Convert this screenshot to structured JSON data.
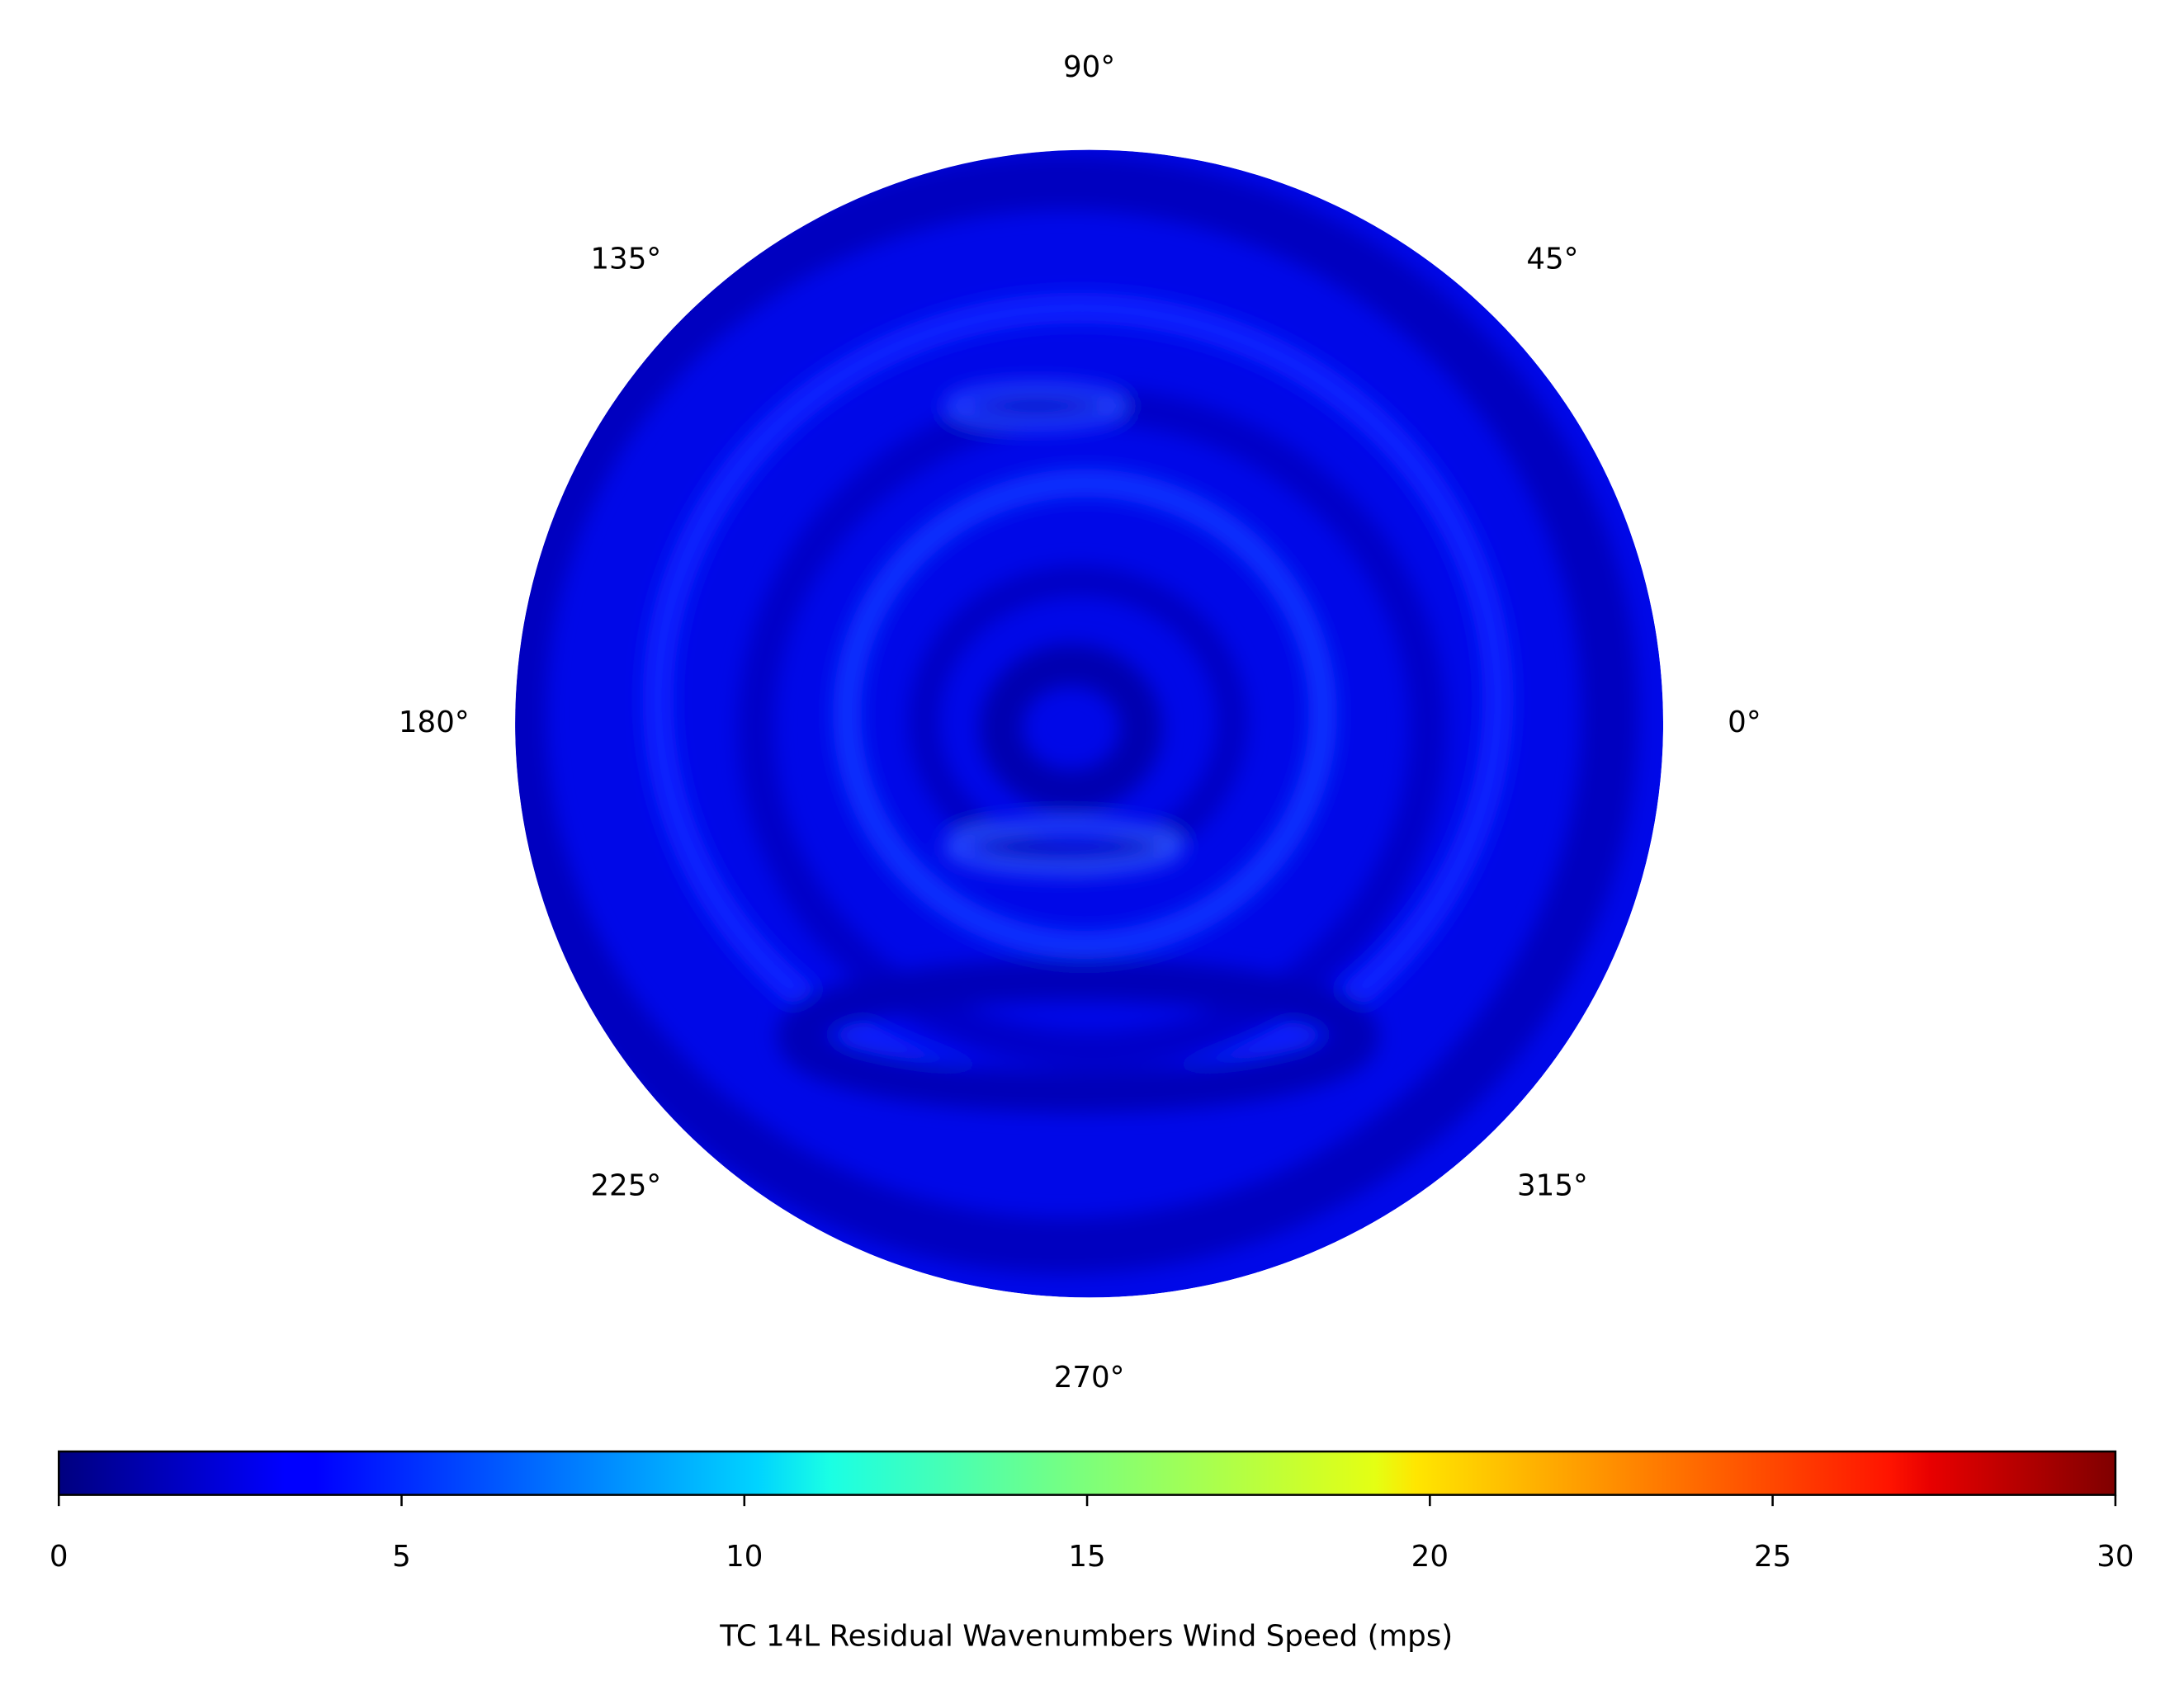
{
  "chart_data": {
    "type": "polar-field",
    "theta_ticks": [
      {
        "value": 0,
        "label": "0°"
      },
      {
        "value": 45,
        "label": "45°"
      },
      {
        "value": 90,
        "label": "90°"
      },
      {
        "value": 135,
        "label": "135°"
      },
      {
        "value": 180,
        "label": "180°"
      },
      {
        "value": 225,
        "label": "225°"
      },
      {
        "value": 270,
        "label": "270°"
      },
      {
        "value": 315,
        "label": "315°"
      }
    ],
    "colorbar": {
      "colormap": "jet",
      "clim": [
        0,
        30
      ],
      "ticks": [
        0,
        5,
        10,
        15,
        20,
        25,
        30
      ],
      "label": "TC 14L Residual Wavenumbers Wind Speed (mps)"
    }
  }
}
